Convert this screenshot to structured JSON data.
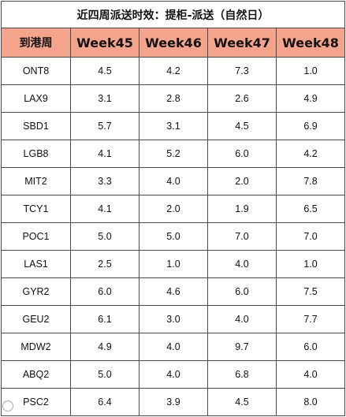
{
  "table": {
    "title": "近四周派送时效：提柜-派送（自然日）",
    "headers": [
      "到港周",
      "Week45",
      "Week46",
      "Week47",
      "Week48"
    ],
    "rows": [
      [
        "ONT8",
        "4.5",
        "4.2",
        "7.3",
        "1.0"
      ],
      [
        "LAX9",
        "3.1",
        "2.8",
        "2.6",
        "4.9"
      ],
      [
        "SBD1",
        "5.7",
        "3.1",
        "4.5",
        "6.9"
      ],
      [
        "LGB8",
        "4.1",
        "5.2",
        "6.0",
        "4.2"
      ],
      [
        "MIT2",
        "3.3",
        "4.0",
        "2.0",
        "7.8"
      ],
      [
        "TCY1",
        "4.1",
        "2.0",
        "1.9",
        "6.5"
      ],
      [
        "POC1",
        "5.0",
        "5.0",
        "7.0",
        "7.0"
      ],
      [
        "LAS1",
        "2.5",
        "1.0",
        "4.0",
        "1.0"
      ],
      [
        "GYR2",
        "6.0",
        "4.6",
        "6.0",
        "7.5"
      ],
      [
        "GEU2",
        "6.1",
        "3.0",
        "4.0",
        "7.7"
      ],
      [
        "MDW2",
        "4.9",
        "4.0",
        "9.7",
        "6.0"
      ],
      [
        "ABQ2",
        "5.0",
        "4.0",
        "6.8",
        "4.0"
      ],
      [
        "PSC2",
        "6.4",
        "3.9",
        "4.5",
        "8.0"
      ]
    ],
    "header_color": "#f3a48a"
  }
}
